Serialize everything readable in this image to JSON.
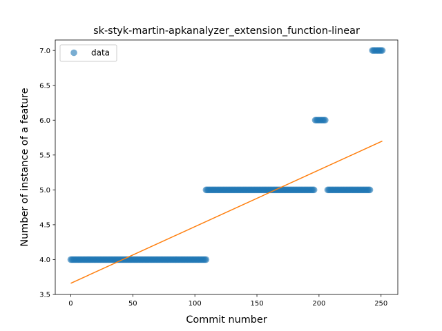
{
  "chart_data": {
    "type": "scatter",
    "title": "sk-styk-martin-apkanalyzer_extension_function-linear",
    "xlabel": "Commit number",
    "ylabel": "Number of instance of a feature",
    "xlim": [
      -12.5,
      263.5
    ],
    "ylim": [
      3.5,
      7.15
    ],
    "xticks": [
      0,
      50,
      100,
      150,
      200,
      250
    ],
    "yticks": [
      3.5,
      4.0,
      4.5,
      5.0,
      5.5,
      6.0,
      6.5,
      7.0
    ],
    "xtick_labels": [
      "0",
      "50",
      "100",
      "150",
      "200",
      "250"
    ],
    "ytick_labels": [
      "3.5",
      "4.0",
      "4.5",
      "5.0",
      "5.5",
      "6.0",
      "6.5",
      "7.0"
    ],
    "legend": {
      "position": "top-left",
      "entries": [
        "data"
      ]
    },
    "grid": false,
    "series": [
      {
        "name": "data",
        "kind": "scatter",
        "color": "#1f77b4",
        "segments": [
          {
            "x_start": 0,
            "x_end": 109,
            "y": 4.0
          },
          {
            "x_start": 109,
            "x_end": 196,
            "y": 5.0
          },
          {
            "x_start": 197,
            "x_end": 205,
            "y": 6.0
          },
          {
            "x_start": 207,
            "x_end": 241,
            "y": 5.0
          },
          {
            "x_start": 243,
            "x_end": 251,
            "y": 7.0
          }
        ]
      },
      {
        "name": "",
        "kind": "line",
        "color": "#ff7f0e",
        "x": [
          0,
          251
        ],
        "y": [
          3.66,
          5.7
        ]
      }
    ]
  }
}
